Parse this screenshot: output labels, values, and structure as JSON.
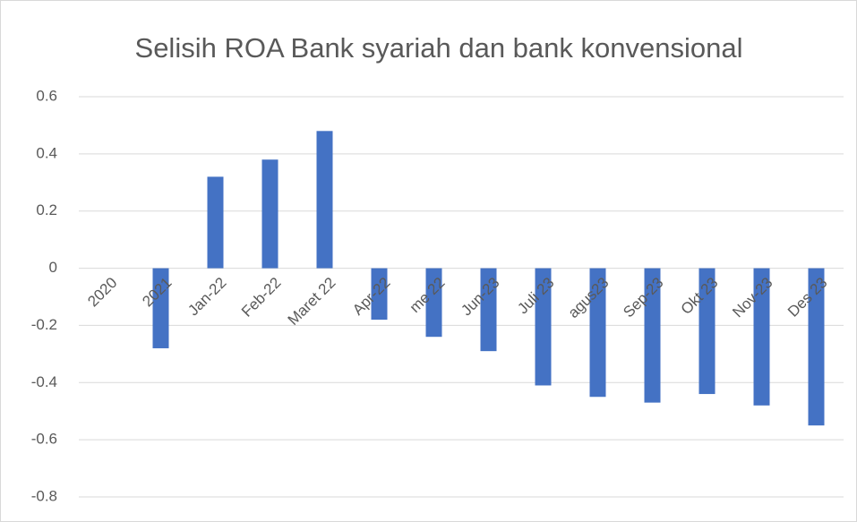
{
  "chart_data": {
    "type": "bar",
    "title": "Selisih ROA Bank syariah dan bank konvensional",
    "categories": [
      "2020",
      "2021",
      "Jan-22",
      "Feb-22",
      "Maret 22",
      "Apr-22",
      "me 22",
      "Jun-23",
      "Juli 23",
      "agus23",
      "Sep-23",
      "Okt 23",
      "Nov-23",
      "Des 23"
    ],
    "values": [
      0,
      -0.28,
      0.32,
      0.38,
      0.48,
      -0.18,
      -0.24,
      -0.29,
      -0.41,
      -0.45,
      -0.47,
      -0.44,
      -0.48,
      -0.55
    ],
    "color": "#4472c4",
    "ylim": [
      -0.8,
      0.6
    ],
    "yticks": [
      -0.8,
      -0.6,
      -0.4,
      -0.2,
      0,
      0.2,
      0.4,
      0.6
    ],
    "grid": true
  }
}
